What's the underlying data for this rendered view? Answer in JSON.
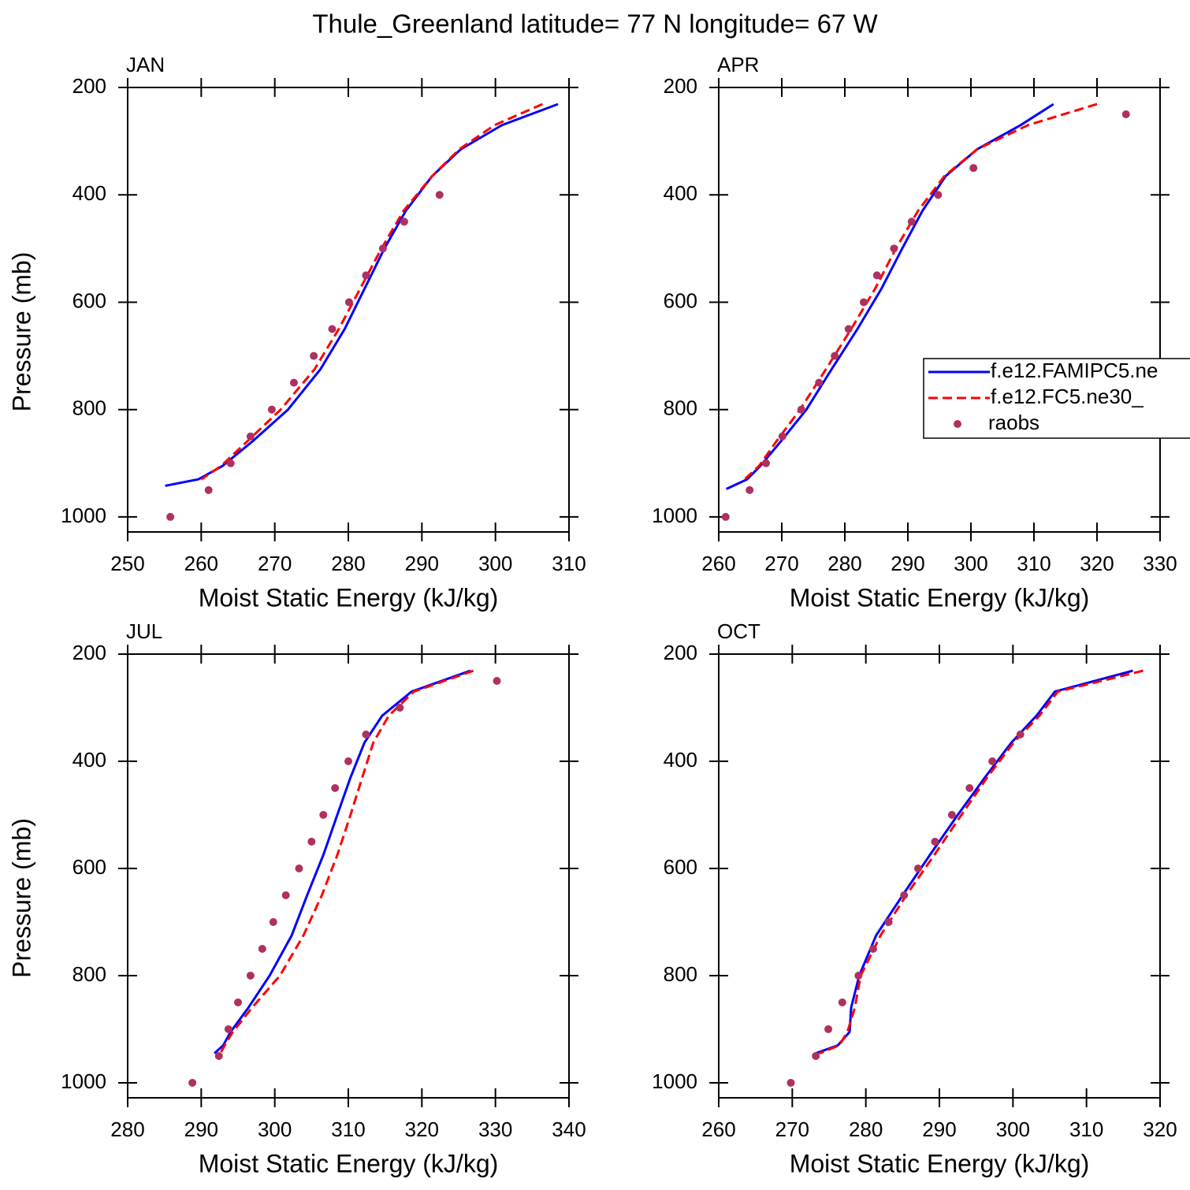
{
  "title": "Thule_Greenland  latitude= 77 N longitude= 67 W",
  "chart_data": [
    {
      "type": "line",
      "title": "JAN",
      "xlabel": "Moist Static Energy (kJ/kg)",
      "ylabel": "Pressure (mb)",
      "xlim": [
        250,
        310
      ],
      "xticks": [
        250,
        260,
        270,
        280,
        290,
        300,
        310
      ],
      "ylim": [
        1028,
        200
      ],
      "yticks": [
        200,
        400,
        600,
        800,
        1000
      ],
      "series": [
        {
          "color": "#0000ff",
          "style": "solid",
          "y": [
            231,
            270,
            315,
            365,
            430,
            500,
            575,
            650,
            725,
            800,
            860,
            905,
            930,
            942
          ],
          "x": [
            308.5,
            300.9,
            295.3,
            291.4,
            287.8,
            284.9,
            282.2,
            279.5,
            276.2,
            271.8,
            266.9,
            262.9,
            259.6,
            255.1
          ]
        },
        {
          "color": "#ff0000",
          "style": "dashed",
          "y": [
            231,
            270,
            315,
            365,
            430,
            500,
            575,
            650,
            725,
            800,
            860,
            905,
            930
          ],
          "x": [
            306.4,
            299.9,
            295.1,
            291.4,
            287.5,
            284.5,
            281.6,
            278.7,
            275.4,
            270.8,
            266.2,
            262.7,
            260
          ]
        },
        {
          "color": "#b03060",
          "style": "markers",
          "y": [
            1000,
            950,
            900,
            850,
            800,
            750,
            700,
            650,
            600,
            550,
            500,
            450,
            400
          ],
          "x": [
            255.8,
            261,
            264,
            266.7,
            269.6,
            272.6,
            275.3,
            277.8,
            280.1,
            282.4,
            284.7,
            287.6,
            292.4
          ]
        }
      ]
    },
    {
      "type": "line",
      "title": "APR",
      "xlabel": "Moist Static Energy (kJ/kg)",
      "xlim": [
        260,
        330
      ],
      "xticks": [
        260,
        270,
        280,
        290,
        300,
        310,
        320,
        330
      ],
      "ylim": [
        1028,
        200
      ],
      "yticks": [
        200,
        400,
        600,
        800,
        1000
      ],
      "legend": "right",
      "series": [
        {
          "name": "f.e12.FAMIPC5.ne",
          "color": "#0000ff",
          "style": "solid",
          "y": [
            231,
            270,
            315,
            365,
            430,
            500,
            575,
            650,
            725,
            800,
            860,
            905,
            930,
            948
          ],
          "x": [
            313.1,
            307.9,
            301,
            296,
            292.3,
            289.1,
            285.8,
            282,
            277.9,
            273.9,
            269.8,
            266.6,
            264.5,
            261.2
          ]
        },
        {
          "name": "f.e12.FC5.ne30_",
          "color": "#ff0000",
          "style": "dashed",
          "y": [
            231,
            270,
            315,
            365,
            430,
            500,
            575,
            650,
            725,
            800,
            860,
            905,
            930
          ],
          "x": [
            320,
            309.1,
            301,
            295.8,
            291.6,
            288.1,
            284.8,
            281,
            277,
            272.9,
            269.1,
            266.4,
            264.1
          ]
        },
        {
          "name": "raobs",
          "color": "#b03060",
          "style": "markers",
          "y": [
            1000,
            950,
            900,
            850,
            800,
            750,
            700,
            650,
            600,
            550,
            500,
            450,
            400,
            350,
            250
          ],
          "x": [
            261.1,
            264.9,
            267.5,
            270.1,
            273.1,
            275.9,
            278.4,
            280.6,
            283,
            285.1,
            287.8,
            290.6,
            294.8,
            300.4,
            324.6
          ]
        }
      ]
    },
    {
      "type": "line",
      "title": "JUL",
      "xlabel": "Moist Static Energy (kJ/kg)",
      "ylabel": "Pressure (mb)",
      "xlim": [
        280,
        340
      ],
      "xticks": [
        280,
        290,
        300,
        310,
        320,
        330,
        340
      ],
      "ylim": [
        1028,
        200
      ],
      "yticks": [
        200,
        400,
        600,
        800,
        1000
      ],
      "series": [
        {
          "color": "#0000ff",
          "style": "solid",
          "y": [
            231,
            270,
            315,
            365,
            430,
            500,
            575,
            650,
            725,
            800,
            860,
            905,
            930,
            945
          ],
          "x": [
            326.6,
            318.6,
            314.6,
            312.2,
            310.3,
            308.5,
            306.6,
            304.4,
            302.3,
            299.3,
            296.4,
            294,
            293,
            291.8
          ]
        },
        {
          "color": "#ff0000",
          "style": "dashed",
          "y": [
            231,
            270,
            315,
            365,
            430,
            500,
            575,
            650,
            725,
            800,
            860,
            905,
            930,
            945
          ],
          "x": [
            327,
            318.9,
            315.5,
            313.4,
            311.9,
            310.3,
            308.5,
            306.4,
            303.9,
            300.7,
            296.9,
            294.3,
            293.2,
            292.6
          ]
        },
        {
          "color": "#b03060",
          "style": "markers",
          "y": [
            1000,
            950,
            900,
            850,
            800,
            750,
            700,
            650,
            600,
            550,
            500,
            450,
            400,
            350,
            300,
            250
          ],
          "x": [
            288.8,
            292.4,
            293.7,
            295,
            296.7,
            298.3,
            299.8,
            301.5,
            303.3,
            305,
            306.6,
            308.2,
            310,
            312.4,
            317,
            330.2
          ]
        }
      ]
    },
    {
      "type": "line",
      "title": "OCT",
      "xlabel": "Moist Static Energy (kJ/kg)",
      "xlim": [
        260,
        320
      ],
      "xticks": [
        260,
        270,
        280,
        290,
        300,
        310,
        320
      ],
      "ylim": [
        1028,
        200
      ],
      "yticks": [
        200,
        400,
        600,
        800,
        1000
      ],
      "series": [
        {
          "color": "#0000ff",
          "style": "solid",
          "y": [
            231,
            270,
            315,
            365,
            430,
            500,
            575,
            650,
            725,
            800,
            860,
            905,
            930,
            945
          ],
          "x": [
            316.3,
            305.7,
            303.2,
            299.8,
            296.2,
            292.5,
            288.7,
            285,
            281.4,
            279.1,
            278,
            277.8,
            276.2,
            273.2
          ]
        },
        {
          "color": "#ff0000",
          "style": "dashed",
          "y": [
            231,
            270,
            315,
            365,
            430,
            500,
            575,
            650,
            725,
            800,
            860,
            905,
            930,
            945
          ],
          "x": [
            317.7,
            306.1,
            303.6,
            300.1,
            296.5,
            293,
            289.3,
            285.5,
            282,
            279.3,
            278.5,
            277.5,
            276.4,
            273.7
          ]
        },
        {
          "color": "#b03060",
          "style": "markers",
          "y": [
            1000,
            950,
            900,
            850,
            800,
            750,
            700,
            650,
            600,
            550,
            500,
            450,
            400,
            350
          ],
          "x": [
            269.8,
            273.2,
            274.9,
            276.8,
            279,
            281,
            283.1,
            285.2,
            287.1,
            289.4,
            291.7,
            294.1,
            297.2,
            301
          ]
        }
      ]
    }
  ]
}
